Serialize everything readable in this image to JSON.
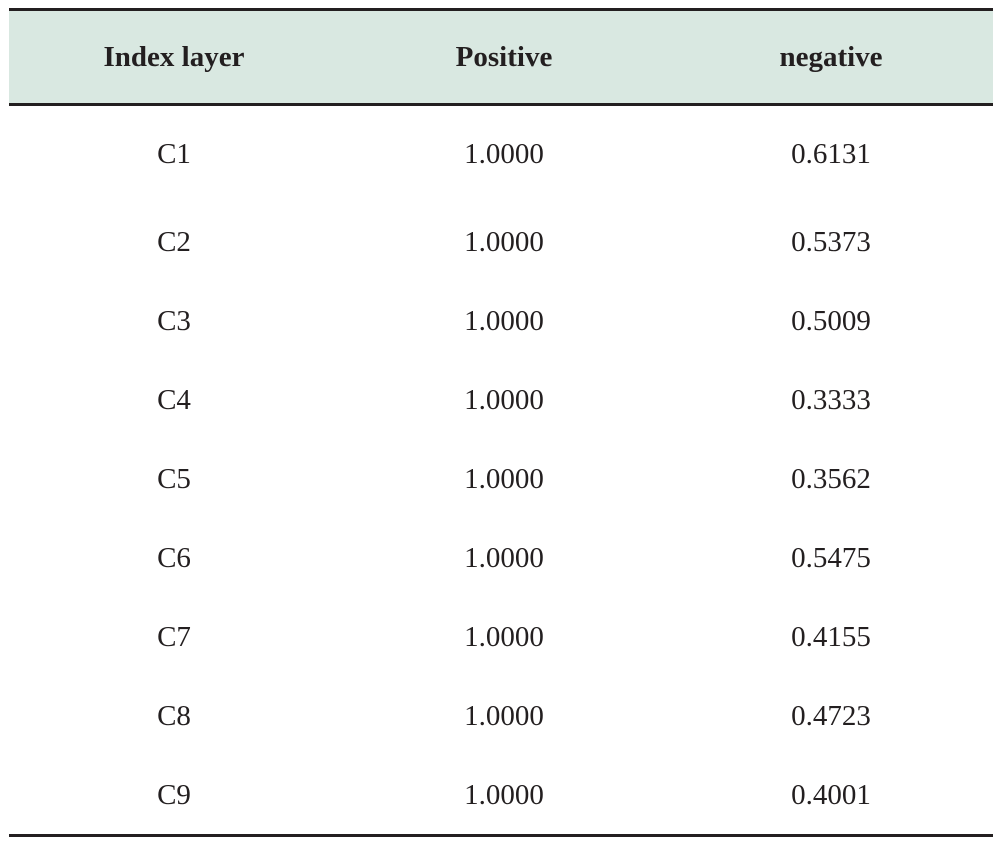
{
  "table": {
    "headers": [
      "Index layer",
      "Positive",
      "negative"
    ],
    "rows": [
      [
        "C1",
        "1.0000",
        "0.6131"
      ],
      [
        "C2",
        "1.0000",
        "0.5373"
      ],
      [
        "C3",
        "1.0000",
        "0.5009"
      ],
      [
        "C4",
        "1.0000",
        "0.3333"
      ],
      [
        "C5",
        "1.0000",
        "0.3562"
      ],
      [
        "C6",
        "1.0000",
        "0.5475"
      ],
      [
        "C7",
        "1.0000",
        "0.4155"
      ],
      [
        "C8",
        "1.0000",
        "0.4723"
      ],
      [
        "C9",
        "1.0000",
        "0.4001"
      ]
    ]
  },
  "colors": {
    "header_background": "#d9e8e1",
    "rule": "#231f20",
    "text": "#231f20"
  }
}
